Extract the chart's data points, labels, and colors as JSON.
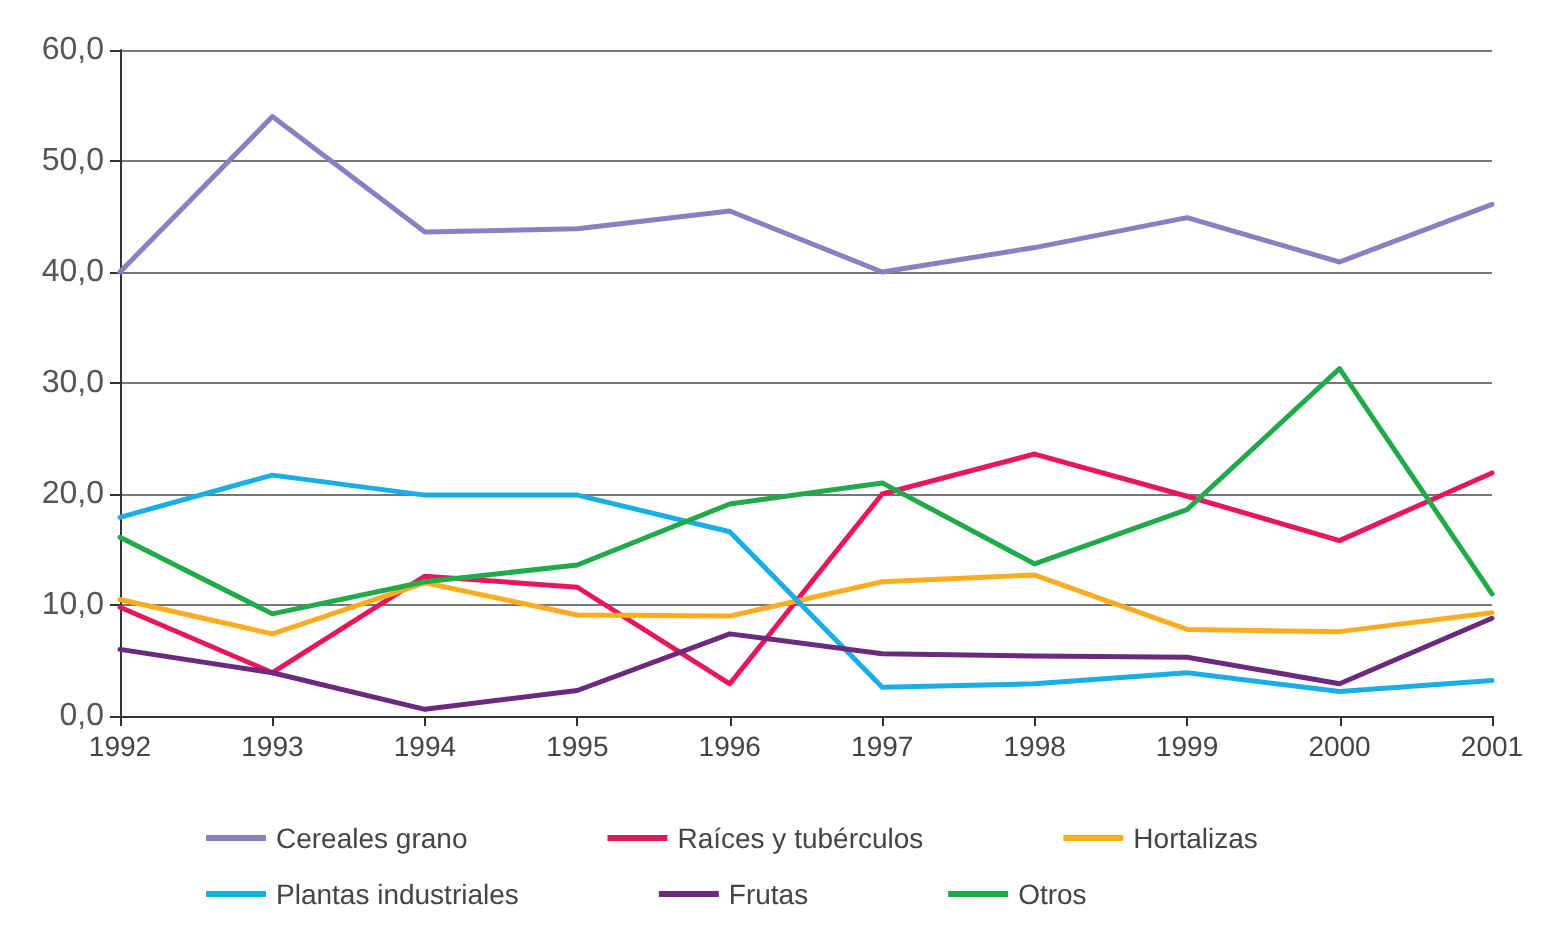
{
  "chart_data": {
    "type": "line",
    "categories": [
      "1992",
      "1993",
      "1994",
      "1995",
      "1996",
      "1997",
      "1998",
      "1999",
      "2000",
      "2001"
    ],
    "series": [
      {
        "name": "Cereales grano",
        "color": "#8a7fc1",
        "values": [
          40,
          54,
          43.6,
          43.9,
          45.5,
          40,
          42.2,
          44.9,
          40.9,
          46.1
        ]
      },
      {
        "name": "Raíces y tubérculos",
        "color": "#e8175d",
        "values": [
          9.8,
          3.9,
          12.6,
          11.6,
          2.9,
          20,
          23.6,
          19.8,
          15.8,
          21.9
        ]
      },
      {
        "name": "Hortalizas",
        "color": "#fbac23",
        "values": [
          10.5,
          7.4,
          12,
          9.1,
          9,
          12.1,
          12.7,
          7.8,
          7.6,
          9.3
        ]
      },
      {
        "name": "Plantas industriales",
        "color": "#1aaee6",
        "values": [
          17.9,
          21.7,
          19.9,
          19.9,
          16.6,
          2.6,
          2.9,
          3.9,
          2.2,
          3.2
        ]
      },
      {
        "name": "Frutas",
        "color": "#6c2a7e",
        "values": [
          6,
          3.9,
          0.6,
          2.3,
          7.4,
          5.6,
          5.4,
          5.3,
          2.9,
          8.8
        ]
      },
      {
        "name": "Otros",
        "color": "#21aa4a",
        "values": [
          16.1,
          9.2,
          12.1,
          13.6,
          19.1,
          21,
          13.7,
          18.6,
          31.3,
          11
        ]
      }
    ],
    "ylim": [
      0,
      60
    ],
    "yticks": [
      {
        "value": 0,
        "label": "0,0"
      },
      {
        "value": 10,
        "label": "10,0"
      },
      {
        "value": 20,
        "label": "20,0"
      },
      {
        "value": 30,
        "label": "30,0"
      },
      {
        "value": 40,
        "label": "40,0"
      },
      {
        "value": 50,
        "label": "50,0"
      },
      {
        "value": 60,
        "label": "60,0"
      }
    ],
    "grid": "y",
    "legend": "bottom",
    "marker": "none",
    "line_style": "solid"
  }
}
